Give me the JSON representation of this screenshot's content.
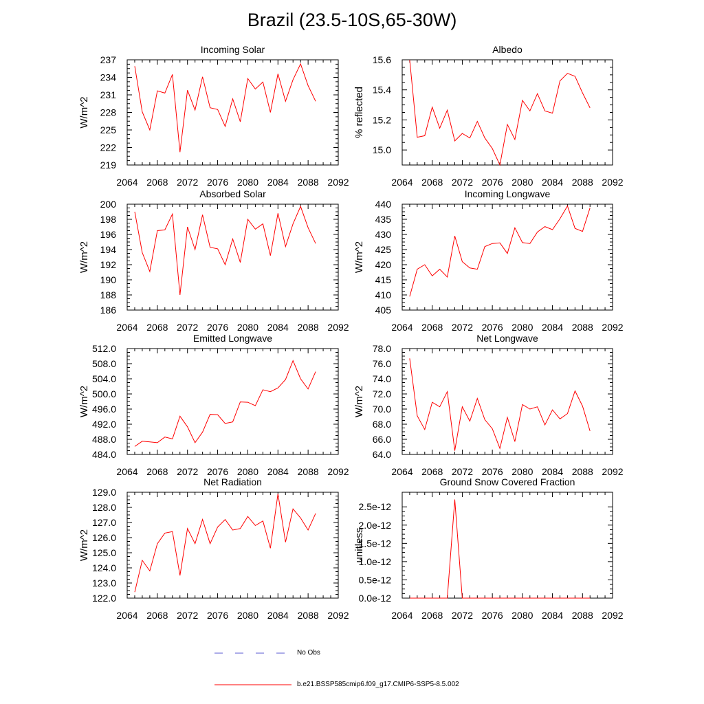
{
  "figure_title": "Brazil (23.5-10S,65-30W)",
  "legend": {
    "items": [
      {
        "label": "No Obs",
        "color": "#5a5ad0",
        "style": "dashed"
      },
      {
        "label": "b.e21.BSSP585cmip6.f09_g17.CMIP6-SSP5-8.5.002",
        "color": "#ff0000",
        "style": "solid"
      }
    ]
  },
  "chart_data": [
    {
      "type": "line",
      "title": "Incoming Solar",
      "ylabel": "W/m^2",
      "xlabel": "",
      "xlim": [
        2064,
        2092
      ],
      "ylim": [
        219,
        237
      ],
      "xticks": [
        2064,
        2068,
        2072,
        2076,
        2080,
        2084,
        2088,
        2092
      ],
      "yticks": [
        219,
        222,
        225,
        228,
        231,
        234,
        237
      ],
      "ytick_labels": [
        "219",
        "222",
        "225",
        "228",
        "231",
        "234",
        "237"
      ],
      "series": [
        {
          "color": "#ff0000",
          "x": [
            2065,
            2066,
            2067,
            2068,
            2069,
            2070,
            2071,
            2072,
            2073,
            2074,
            2075,
            2076,
            2077,
            2078,
            2079,
            2080,
            2081,
            2082,
            2083,
            2084,
            2085,
            2086,
            2087,
            2088,
            2089
          ],
          "values": [
            235.9,
            228.1,
            225.0,
            231.7,
            231.3,
            234.5,
            221.2,
            231.8,
            228.4,
            234.1,
            228.8,
            228.5,
            225.6,
            230.3,
            226.4,
            233.8,
            232.0,
            233.2,
            228.0,
            234.6,
            229.9,
            233.6,
            236.3,
            232.6,
            229.9
          ]
        }
      ]
    },
    {
      "type": "line",
      "title": "Albedo",
      "ylabel": "% reflected",
      "xlabel": "",
      "xlim": [
        2064,
        2092
      ],
      "ylim": [
        14.9,
        15.6
      ],
      "xticks": [
        2064,
        2068,
        2072,
        2076,
        2080,
        2084,
        2088,
        2092
      ],
      "yticks": [
        15.0,
        15.2,
        15.4,
        15.6
      ],
      "ytick_labels": [
        "15.0",
        "15.2",
        "15.4",
        "15.6"
      ],
      "series": [
        {
          "color": "#ff0000",
          "x": [
            2065,
            2066,
            2067,
            2068,
            2069,
            2070,
            2071,
            2072,
            2073,
            2074,
            2075,
            2076,
            2077,
            2078,
            2079,
            2080,
            2081,
            2082,
            2083,
            2084,
            2085,
            2086,
            2087,
            2088,
            2089
          ],
          "values": [
            15.6,
            15.085,
            15.095,
            15.285,
            15.145,
            15.265,
            15.06,
            15.11,
            15.08,
            15.19,
            15.08,
            15.01,
            14.9,
            15.17,
            15.07,
            15.33,
            15.26,
            15.375,
            15.26,
            15.245,
            15.46,
            15.51,
            15.49,
            15.38,
            15.28
          ]
        }
      ]
    },
    {
      "type": "line",
      "title": "Absorbed Solar",
      "ylabel": "W/m^2",
      "xlabel": "",
      "xlim": [
        2064,
        2092
      ],
      "ylim": [
        186,
        200
      ],
      "xticks": [
        2064,
        2068,
        2072,
        2076,
        2080,
        2084,
        2088,
        2092
      ],
      "yticks": [
        186,
        188,
        190,
        192,
        194,
        196,
        198,
        200
      ],
      "ytick_labels": [
        "186",
        "188",
        "190",
        "192",
        "194",
        "196",
        "198",
        "200"
      ],
      "series": [
        {
          "color": "#ff0000",
          "x": [
            2065,
            2066,
            2067,
            2068,
            2069,
            2070,
            2071,
            2072,
            2073,
            2074,
            2075,
            2076,
            2077,
            2078,
            2079,
            2080,
            2081,
            2082,
            2083,
            2084,
            2085,
            2086,
            2087,
            2088,
            2089
          ],
          "values": [
            199.0,
            193.6,
            191.1,
            196.5,
            196.6,
            198.7,
            188.0,
            197.0,
            194.0,
            198.6,
            194.3,
            194.1,
            192.0,
            195.4,
            192.3,
            198.0,
            196.7,
            197.4,
            193.2,
            198.8,
            194.4,
            197.4,
            199.7,
            196.9,
            194.8
          ]
        }
      ]
    },
    {
      "type": "line",
      "title": "Incoming Longwave",
      "ylabel": "W/m^2",
      "xlabel": "",
      "xlim": [
        2064,
        2092
      ],
      "ylim": [
        405,
        440
      ],
      "xticks": [
        2064,
        2068,
        2072,
        2076,
        2080,
        2084,
        2088,
        2092
      ],
      "yticks": [
        405,
        410,
        415,
        420,
        425,
        430,
        435,
        440
      ],
      "ytick_labels": [
        "405",
        "410",
        "415",
        "420",
        "425",
        "430",
        "435",
        "440"
      ],
      "series": [
        {
          "color": "#ff0000",
          "x": [
            2065,
            2066,
            2067,
            2068,
            2069,
            2070,
            2071,
            2072,
            2073,
            2074,
            2075,
            2076,
            2077,
            2078,
            2079,
            2080,
            2081,
            2082,
            2083,
            2084,
            2085,
            2086,
            2087,
            2088,
            2089
          ],
          "values": [
            409.5,
            418.5,
            420.0,
            416.3,
            418.5,
            415.9,
            429.5,
            421.0,
            418.9,
            418.5,
            426.0,
            427.0,
            427.2,
            423.7,
            432.2,
            427.3,
            427.0,
            430.8,
            432.6,
            431.6,
            435.2,
            439.4,
            432.0,
            431.0,
            438.8
          ]
        }
      ]
    },
    {
      "type": "line",
      "title": "Emitted Longwave",
      "ylabel": "W/m^2",
      "xlabel": "",
      "xlim": [
        2064,
        2092
      ],
      "ylim": [
        484,
        512
      ],
      "xticks": [
        2064,
        2068,
        2072,
        2076,
        2080,
        2084,
        2088,
        2092
      ],
      "yticks": [
        484,
        488,
        492,
        496,
        500,
        504,
        508,
        512
      ],
      "ytick_labels": [
        "484.0",
        "488.0",
        "492.0",
        "496.0",
        "500.0",
        "504.0",
        "508.0",
        "512.0"
      ],
      "series": [
        {
          "color": "#ff0000",
          "x": [
            2065,
            2066,
            2067,
            2068,
            2069,
            2070,
            2071,
            2072,
            2073,
            2074,
            2075,
            2076,
            2077,
            2078,
            2079,
            2080,
            2081,
            2082,
            2083,
            2084,
            2085,
            2086,
            2087,
            2088,
            2089
          ],
          "values": [
            486.1,
            487.5,
            487.3,
            487.1,
            488.6,
            488.1,
            494.1,
            491.3,
            487.1,
            489.9,
            494.6,
            494.5,
            492.2,
            492.6,
            497.9,
            497.8,
            496.9,
            501.1,
            500.6,
            501.6,
            503.8,
            508.8,
            504.0,
            501.3,
            505.9
          ]
        }
      ]
    },
    {
      "type": "line",
      "title": "Net Longwave",
      "ylabel": "W/m^2",
      "xlabel": "",
      "xlim": [
        2064,
        2092
      ],
      "ylim": [
        64,
        78
      ],
      "xticks": [
        2064,
        2068,
        2072,
        2076,
        2080,
        2084,
        2088,
        2092
      ],
      "yticks": [
        64,
        66,
        68,
        70,
        72,
        74,
        76,
        78
      ],
      "ytick_labels": [
        "64.0",
        "66.0",
        "68.0",
        "70.0",
        "72.0",
        "74.0",
        "76.0",
        "78.0"
      ],
      "series": [
        {
          "color": "#ff0000",
          "x": [
            2065,
            2066,
            2067,
            2068,
            2069,
            2070,
            2071,
            2072,
            2073,
            2074,
            2075,
            2076,
            2077,
            2078,
            2079,
            2080,
            2081,
            2082,
            2083,
            2084,
            2085,
            2086,
            2087,
            2088,
            2089
          ],
          "values": [
            76.7,
            69.1,
            67.3,
            70.9,
            70.3,
            72.3,
            64.5,
            70.3,
            68.4,
            71.4,
            68.6,
            67.4,
            64.8,
            68.9,
            65.7,
            70.6,
            70.0,
            70.3,
            67.9,
            69.9,
            68.7,
            69.4,
            72.4,
            70.4,
            67.1
          ]
        }
      ]
    },
    {
      "type": "line",
      "title": "Net Radiation",
      "ylabel": "W/m^2",
      "xlabel": "",
      "xlim": [
        2064,
        2092
      ],
      "ylim": [
        122,
        129
      ],
      "xticks": [
        2064,
        2068,
        2072,
        2076,
        2080,
        2084,
        2088,
        2092
      ],
      "yticks": [
        122,
        123,
        124,
        125,
        126,
        127,
        128,
        129
      ],
      "ytick_labels": [
        "122.0",
        "123.0",
        "124.0",
        "125.0",
        "126.0",
        "127.0",
        "128.0",
        "129.0"
      ],
      "series": [
        {
          "color": "#ff0000",
          "x": [
            2065,
            2066,
            2067,
            2068,
            2069,
            2070,
            2071,
            2072,
            2073,
            2074,
            2075,
            2076,
            2077,
            2078,
            2079,
            2080,
            2081,
            2082,
            2083,
            2084,
            2085,
            2086,
            2087,
            2088,
            2089
          ],
          "values": [
            122.4,
            124.5,
            123.8,
            125.6,
            126.3,
            126.4,
            123.5,
            126.6,
            125.6,
            127.2,
            125.6,
            126.7,
            127.2,
            126.5,
            126.6,
            127.4,
            126.8,
            127.1,
            125.3,
            128.9,
            125.7,
            127.9,
            127.3,
            126.5,
            127.6
          ]
        }
      ]
    },
    {
      "type": "line",
      "title": "Ground Snow Covered Fraction",
      "ylabel": "unitless",
      "xlabel": "",
      "xlim": [
        2064,
        2092
      ],
      "ylim": [
        0,
        2.9e-12
      ],
      "xticks": [
        2064,
        2068,
        2072,
        2076,
        2080,
        2084,
        2088,
        2092
      ],
      "yticks": [
        0,
        5e-13,
        1e-12,
        1.5e-12,
        2e-12,
        2.5e-12
      ],
      "ytick_labels": [
        "0.0e-12",
        "0.5e-12",
        "1.0e-12",
        "1.5e-12",
        "2.0e-12",
        "2.5e-12"
      ],
      "series": [
        {
          "color": "#ff0000",
          "x": [
            2065,
            2066,
            2067,
            2068,
            2069,
            2070,
            2071,
            2072,
            2073,
            2074,
            2075,
            2076,
            2077,
            2078,
            2079,
            2080,
            2081,
            2082,
            2083,
            2084,
            2085,
            2086,
            2087,
            2088,
            2089
          ],
          "values": [
            0,
            0,
            0,
            0,
            0,
            0,
            2.7e-12,
            0,
            0,
            0,
            0,
            0,
            0,
            0,
            0,
            0,
            0,
            0,
            0,
            0,
            0,
            0,
            0,
            0,
            0
          ]
        }
      ]
    }
  ]
}
